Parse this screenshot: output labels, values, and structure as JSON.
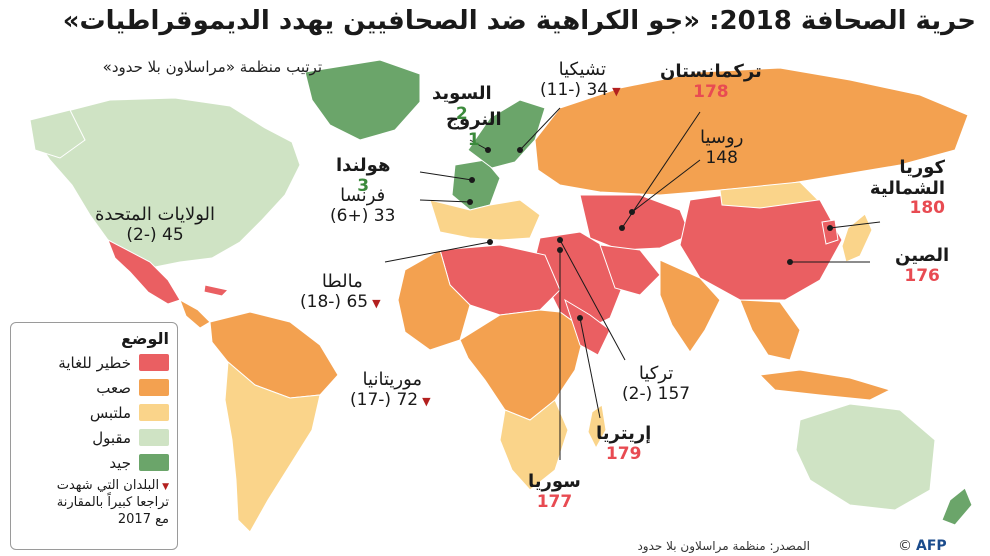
{
  "header": {
    "title": "حرية الصحافة 2018: «جو الكراهية ضد الصحافيين يهدد الديموقراطيات»",
    "subtitle": "ترتيب منظمة «مراسلاون بلا حدود»"
  },
  "colors": {
    "very_serious": "#ea5f62",
    "difficult": "#f3a150",
    "problematic": "#fad48a",
    "satisfactory": "#cfe3c4",
    "good": "#6ba56a",
    "ocean": "#ffffff",
    "drop_marker": "#b3201f"
  },
  "legend": {
    "title": "الوضع",
    "items": [
      {
        "label": "خطير للغاية",
        "color": "#ea5f62"
      },
      {
        "label": "صعب",
        "color": "#f3a150"
      },
      {
        "label": "ملتبس",
        "color": "#fad48a"
      },
      {
        "label": "مقبول",
        "color": "#cfe3c4"
      },
      {
        "label": "جيد",
        "color": "#6ba56a"
      }
    ],
    "note_line1": "البلدان التي شهدت",
    "note_line2": "تراجعا كبيراً بالمقارنة",
    "note_line3": "مع 2017"
  },
  "countries": {
    "turkmenistan": {
      "name": "تركمانستان",
      "rank": "178"
    },
    "czechia": {
      "name": "تشيكيا",
      "rank": "34 (-11)"
    },
    "sweden": {
      "name": "السويد",
      "rank": "2"
    },
    "norway": {
      "name": "النروج",
      "rank": "1"
    },
    "russia": {
      "name": "روسيا",
      "rank": "148"
    },
    "netherlands": {
      "name": "هولندا",
      "rank": "3"
    },
    "france": {
      "name": "فرنسا",
      "rank": "33 (+6)"
    },
    "usa": {
      "name": "الولايات المتحدة",
      "rank": "45 (-2)"
    },
    "north_korea": {
      "name": "كوريا الشمالية",
      "rank": "180"
    },
    "china": {
      "name": "الصين",
      "rank": "176"
    },
    "malta": {
      "name": "مالطا",
      "rank": "65 (-18)"
    },
    "mauritania": {
      "name": "موريتانيا",
      "rank": "72 (-17)"
    },
    "turkey": {
      "name": "تركيا",
      "rank": "157 (-2)"
    },
    "eritrea": {
      "name": "إريتريا",
      "rank": "179"
    },
    "syria": {
      "name": "سوريا",
      "rank": "177"
    }
  },
  "footer": {
    "source": "المصدر: منظمة مراسلاون بلا حدود",
    "credit": "AFP",
    "copyright": "©"
  }
}
